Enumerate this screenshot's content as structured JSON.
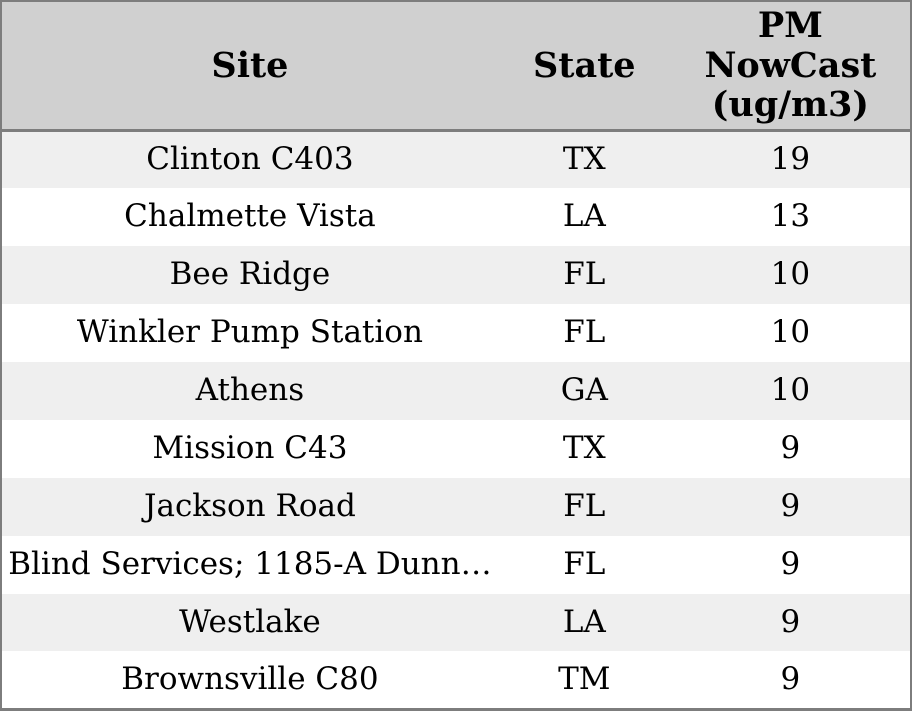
{
  "chart_data": {
    "type": "table",
    "columns": [
      {
        "key": "site",
        "label": "Site"
      },
      {
        "key": "state",
        "label": "State"
      },
      {
        "key": "pm_nowcast",
        "label": "PM\nNowCast\n(ug/m3)"
      }
    ],
    "rows": [
      [
        "Clinton C403",
        "TX",
        19
      ],
      [
        "Chalmette Vista",
        "LA",
        13
      ],
      [
        "Bee Ridge",
        "FL",
        10
      ],
      [
        "Winkler Pump Station",
        "FL",
        10
      ],
      [
        "Athens",
        "GA",
        10
      ],
      [
        "Mission C43",
        "TX",
        9
      ],
      [
        "Jackson Road",
        "FL",
        9
      ],
      [
        "Blind Services; 1185-A Dunn…",
        "FL",
        9
      ],
      [
        "Westlake",
        "LA",
        9
      ],
      [
        "Brownsville C80",
        "TM",
        9
      ]
    ],
    "layout": {
      "striped_rows": true,
      "first_data_row_striped": true
    }
  },
  "colors": {
    "header_bg": "#d0d0d0",
    "row_stripe_bg": "#efefef",
    "row_bg": "#ffffff",
    "border": "#7d7d7d",
    "text": "#000000"
  }
}
